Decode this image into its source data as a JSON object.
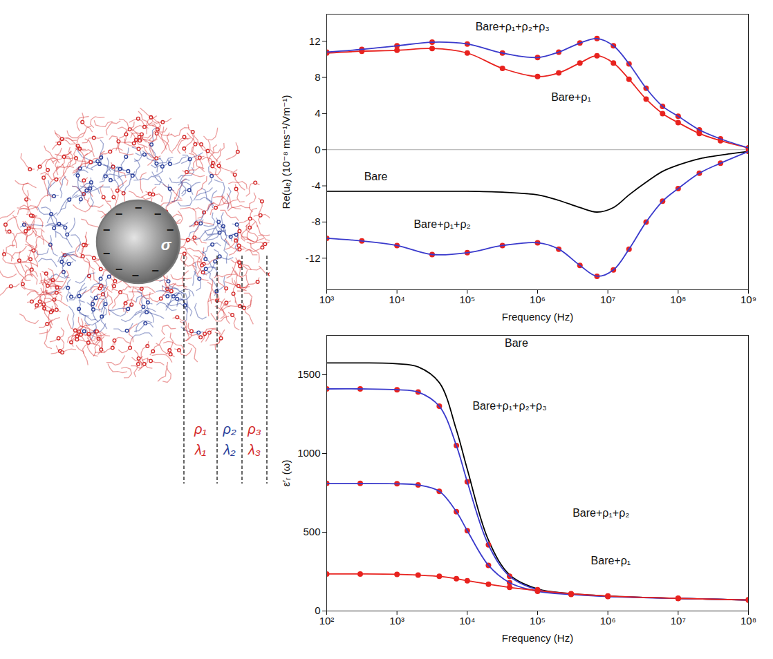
{
  "diagram": {
    "core_label": "σ",
    "charge_sign": "−",
    "layers": [
      {
        "density": "ρ₁",
        "length": "λ₁",
        "color": "#d42a2a"
      },
      {
        "density": "ρ₂",
        "length": "λ₂",
        "color": "#2a3f9a"
      },
      {
        "density": "ρ₃",
        "length": "λ₃",
        "color": "#d42a2a"
      }
    ]
  },
  "chart_data": [
    {
      "type": "line",
      "xlabel": "Frequency (Hz)",
      "ylabel": "Re(uₑ) (10⁻⁸ ms⁻¹/Vm⁻¹)",
      "log": "x",
      "grid": false,
      "x": [
        1000,
        3162,
        10000,
        31623,
        100000,
        316228,
        1000000,
        2000000,
        4000000,
        7000000,
        12000000,
        20000000,
        35000000,
        60000000,
        100000000,
        200000000,
        400000000,
        1000000000
      ],
      "xlim": [
        1000,
        1000000000
      ],
      "xticks": [
        {
          "value": 1000,
          "label": "10³"
        },
        {
          "value": 10000,
          "label": "10⁴"
        },
        {
          "value": 100000,
          "label": "10⁵"
        },
        {
          "value": 1000000,
          "label": "10⁶"
        },
        {
          "value": 10000000,
          "label": "10⁷"
        },
        {
          "value": 100000000,
          "label": "10⁸"
        },
        {
          "value": 1000000000,
          "label": "10⁹"
        }
      ],
      "ylim": [
        -15.5,
        15
      ],
      "yticks": [
        -12,
        -8,
        -4,
        0,
        4,
        8,
        12
      ],
      "series": [
        {
          "name": "Bare",
          "color": "#000000",
          "values": [
            -4.6,
            -4.6,
            -4.6,
            -4.6,
            -4.6,
            -4.7,
            -5.0,
            -5.6,
            -6.4,
            -6.9,
            -6.4,
            -5.0,
            -3.6,
            -2.4,
            -1.7,
            -1.0,
            -0.6,
            -0.2
          ]
        },
        {
          "name": "Bare+ρ₁",
          "color": "#e8231f",
          "marker": "circle",
          "values": [
            10.7,
            10.9,
            11.0,
            11.2,
            10.7,
            9.0,
            8.1,
            8.5,
            9.6,
            10.4,
            9.6,
            7.8,
            5.6,
            4.0,
            3.0,
            1.8,
            1.0,
            0.2
          ]
        },
        {
          "name": "Bare+ρ₁+ρ₂",
          "color": "#3a3acc",
          "marker": "circle",
          "values": [
            -9.8,
            -10.1,
            -10.6,
            -11.6,
            -11.4,
            -10.6,
            -10.3,
            -11.0,
            -12.8,
            -14.0,
            -13.3,
            -11.0,
            -8.0,
            -5.7,
            -4.3,
            -2.6,
            -1.5,
            -0.2
          ]
        },
        {
          "name": "Bare+ρ₁+ρ₂+ρ₃",
          "color": "#3a3acc",
          "marker": "circle",
          "values": [
            10.8,
            11.1,
            11.5,
            11.9,
            11.7,
            10.7,
            10.2,
            10.8,
            11.8,
            12.3,
            11.5,
            9.5,
            6.8,
            4.8,
            3.7,
            2.2,
            1.2,
            0.2
          ]
        }
      ],
      "annotations": [
        {
          "text": "Bare+ρ₁+ρ₂+ρ₃",
          "x": 440000,
          "y": 13.6
        },
        {
          "text": "Bare+ρ₁",
          "x": 3000000,
          "y": 5.8
        },
        {
          "text": "Bare",
          "x": 5000,
          "y": -3.0
        },
        {
          "text": "Bare+ρ₁+ρ₂",
          "x": 44000,
          "y": -8.3
        }
      ]
    },
    {
      "type": "line",
      "xlabel": "Frequency (Hz)",
      "ylabel": "ε′ᵣ (ω)",
      "log": "x",
      "grid": false,
      "x": [
        100,
        300,
        1000,
        2000,
        4000,
        7000,
        10000,
        20000,
        40000,
        100000,
        300000,
        1000000,
        10000000,
        100000000
      ],
      "xlim": [
        100,
        100000000
      ],
      "xticks": [
        {
          "value": 100,
          "label": "10²"
        },
        {
          "value": 1000,
          "label": "10³"
        },
        {
          "value": 10000,
          "label": "10⁴"
        },
        {
          "value": 100000,
          "label": "10⁵"
        },
        {
          "value": 1000000,
          "label": "10⁶"
        },
        {
          "value": 10000000,
          "label": "10⁷"
        },
        {
          "value": 100000000,
          "label": "10⁸"
        }
      ],
      "ylim": [
        0,
        1750
      ],
      "yticks": [
        0,
        500,
        1000,
        1500
      ],
      "series": [
        {
          "name": "Bare",
          "color": "#000000",
          "values": [
            1575,
            1575,
            1570,
            1550,
            1450,
            1150,
            900,
            450,
            230,
            140,
            110,
            95,
            80,
            70
          ]
        },
        {
          "name": "Bare+ρ₁+ρ₂+ρ₃",
          "color": "#3a3acc",
          "marker": "circle",
          "values": [
            1410,
            1410,
            1405,
            1390,
            1300,
            1050,
            820,
            420,
            220,
            135,
            108,
            93,
            80,
            70
          ]
        },
        {
          "name": "Bare+ρ₁+ρ₂",
          "color": "#3a3acc",
          "marker": "circle",
          "values": [
            810,
            810,
            808,
            800,
            760,
            630,
            510,
            290,
            180,
            125,
            105,
            92,
            80,
            70
          ]
        },
        {
          "name": "Bare+ρ₁",
          "color": "#e8231f",
          "marker": "circle",
          "values": [
            235,
            235,
            233,
            228,
            220,
            205,
            192,
            170,
            150,
            130,
            110,
            95,
            80,
            70
          ]
        }
      ],
      "annotations": [
        {
          "text": "Bare",
          "x": 50000,
          "y": 1700
        },
        {
          "text": "Bare+ρ₁+ρ₂+ρ₃",
          "x": 40000,
          "y": 1300
        },
        {
          "text": "Bare+ρ₁+ρ₂",
          "x": 800000,
          "y": 620
        },
        {
          "text": "Bare+ρ₁",
          "x": 1100000,
          "y": 320
        }
      ]
    }
  ]
}
